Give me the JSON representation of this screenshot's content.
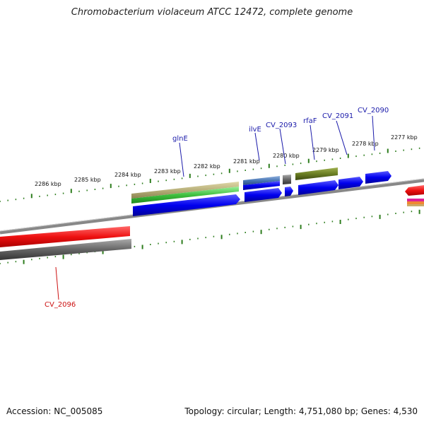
{
  "title": "Chromobacterium violaceum ATCC 12472, complete genome",
  "footer": {
    "accession": "Accession: NC_005085",
    "summary": "Topology: circular; Length: 4,751,080 bp; Genes: 4,530"
  },
  "ruler_labels": [
    "2286 kbp",
    "2285 kbp",
    "2284 kbp",
    "2283 kbp",
    "2282 kbp",
    "2281 kbp",
    "2280 kbp",
    "2279 kbp",
    "2278 kbp",
    "2277 kbp"
  ],
  "gene_labels": {
    "glnE": "glnE",
    "ilvE": "ilvE",
    "cv2093": "CV_2093",
    "rfaF": "rfaF",
    "cv2091": "CV_2091",
    "cv2090": "CV_2090",
    "cv2096": "CV_2096"
  },
  "colors": {
    "cds_blue": "#0000ee",
    "label_blue": "#1a1aaa",
    "label_red": "#cc1111",
    "tick_green": "#2e7d1e",
    "olive": "#6b7f23",
    "tan": "#b8b07a",
    "bright_green": "#3fbf3f",
    "steel_blue": "#4a78b5",
    "red": "#ee1111",
    "gray": "#666666"
  }
}
